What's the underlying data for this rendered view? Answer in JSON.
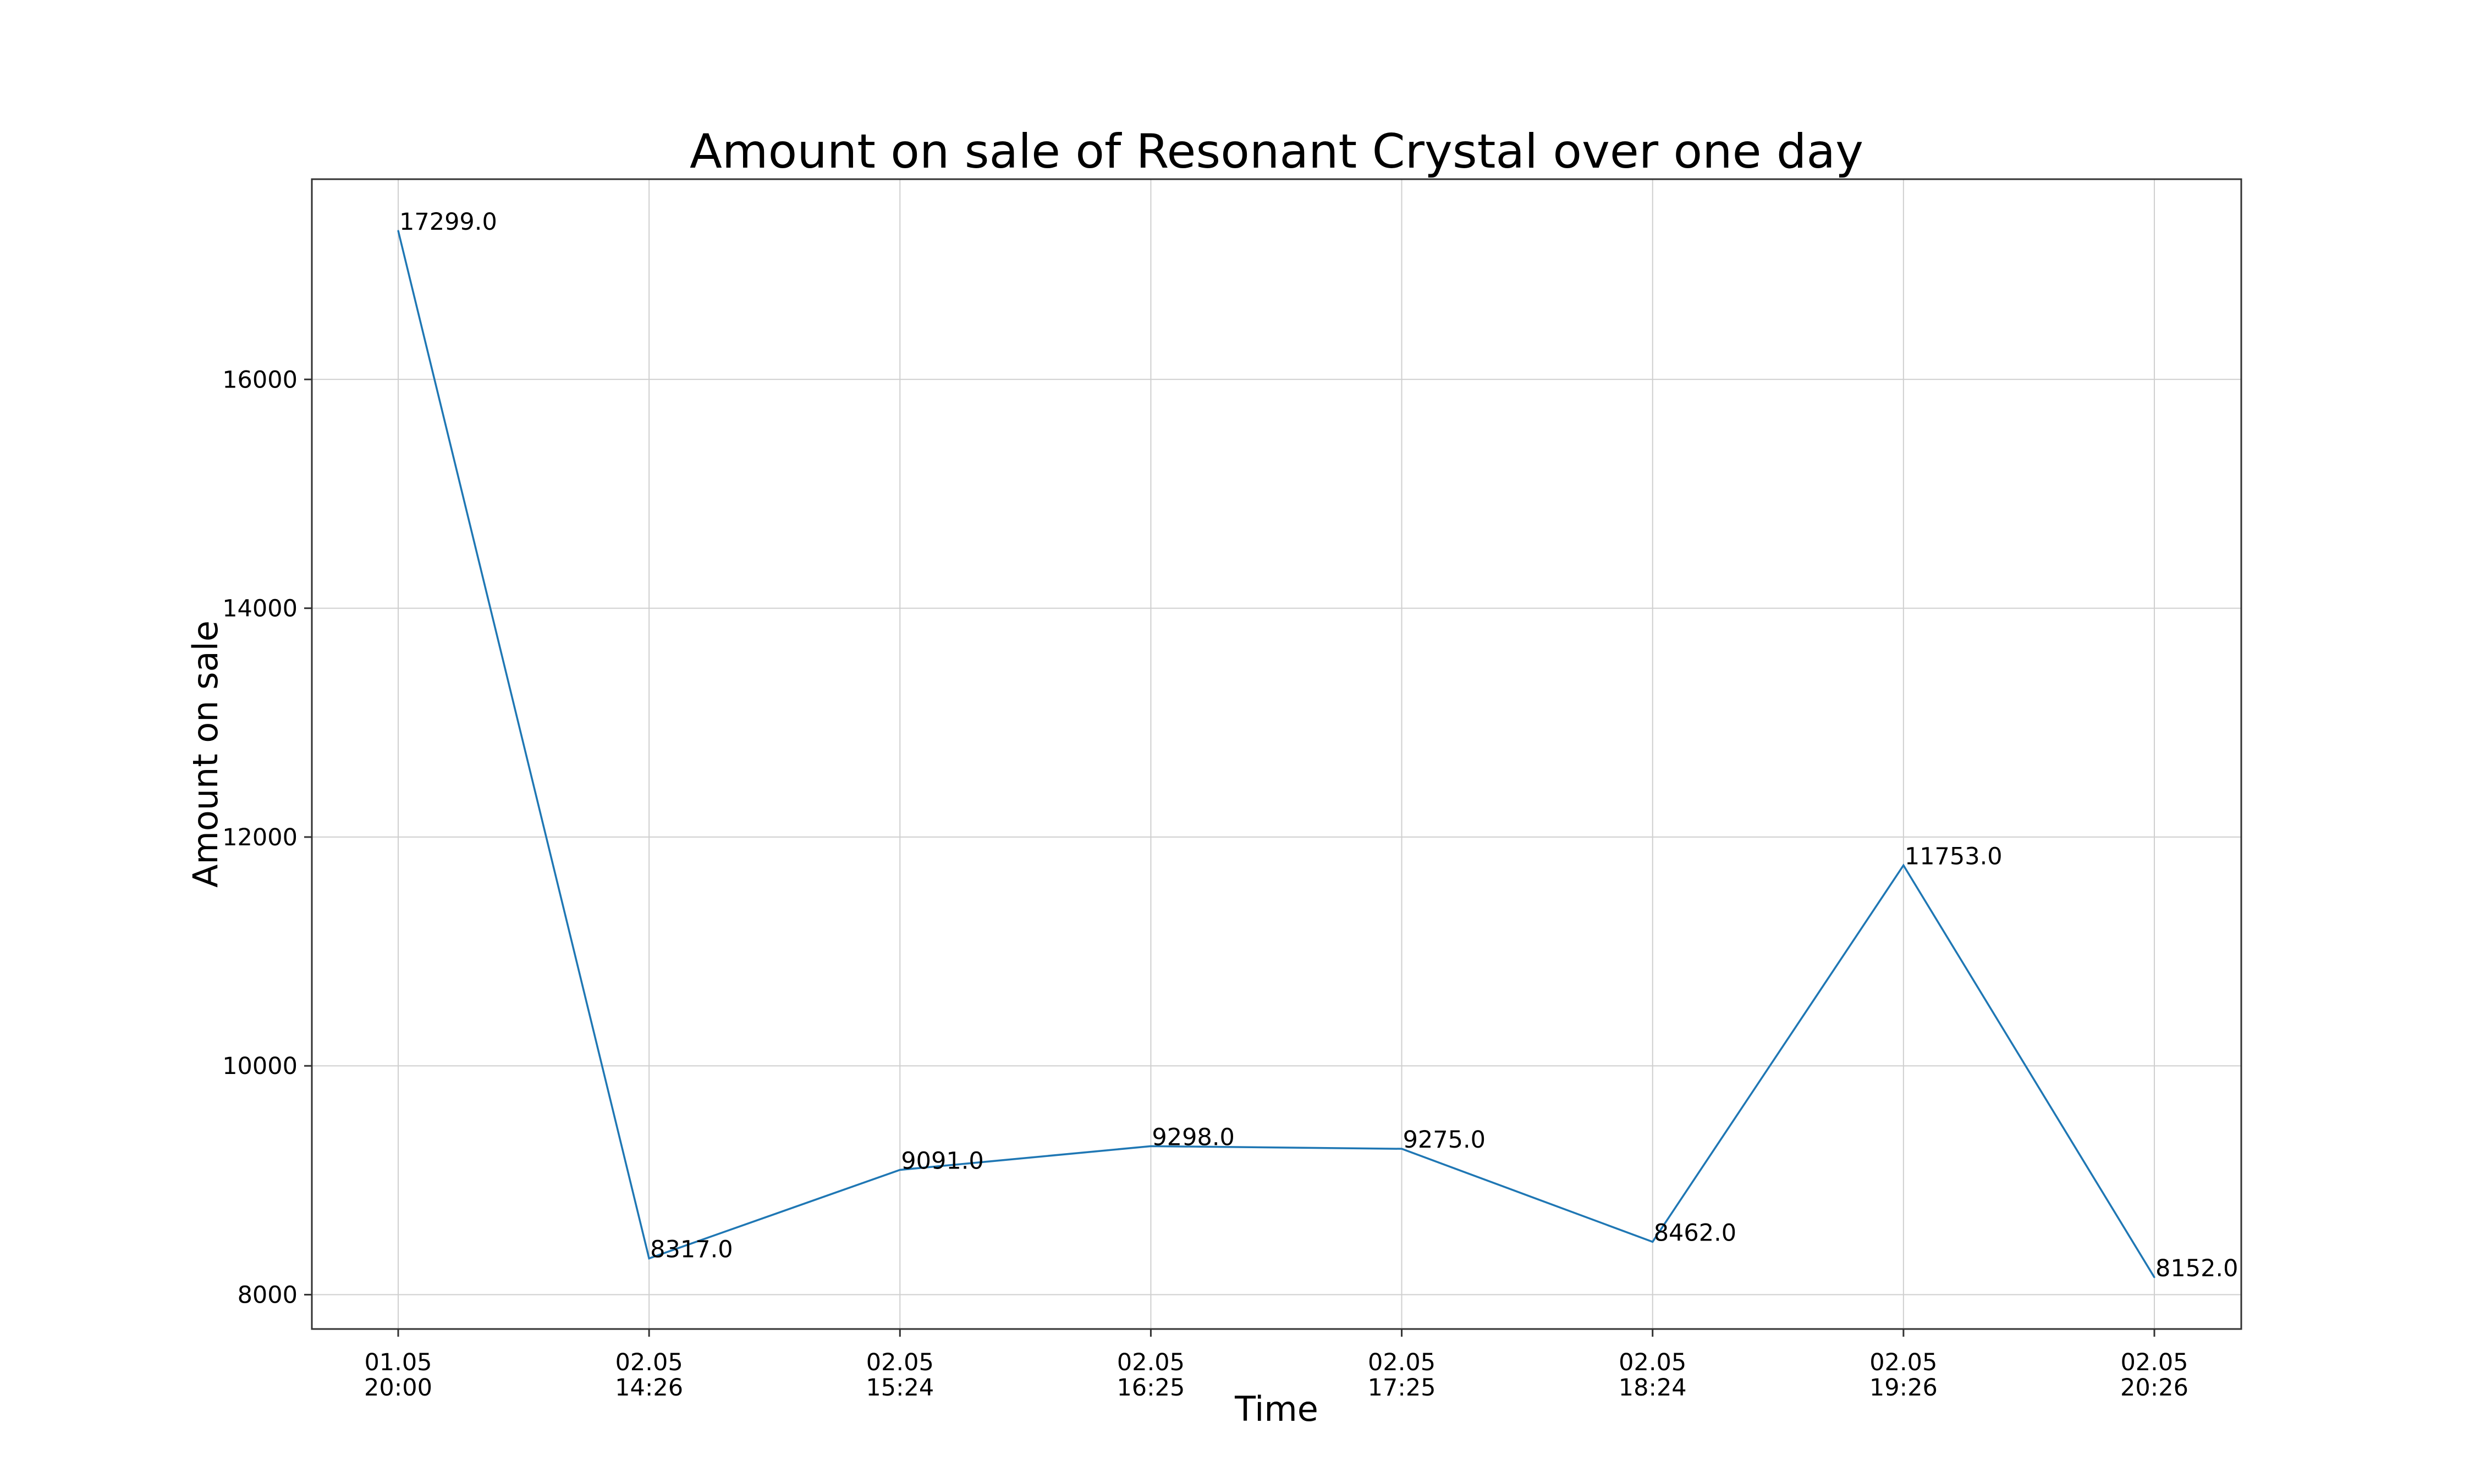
{
  "chart_data": {
    "type": "line",
    "title": "Amount on sale of Resonant Crystal over one day",
    "xlabel": "Time",
    "ylabel": "Amount on sale",
    "categories": [
      "01.05\n20:00",
      "02.05\n14:26",
      "02.05\n15:24",
      "02.05\n16:25",
      "02.05\n17:25",
      "02.05\n18:24",
      "02.05\n19:26",
      "02.05\n20:26"
    ],
    "series": [
      {
        "values": [
          17299.0,
          8317.0,
          9091.0,
          9298.0,
          9275.0,
          8462.0,
          11753.0,
          8152.0
        ],
        "color": "#1f77b4"
      }
    ],
    "data_labels": [
      "17299.0",
      "8317.0",
      "9091.0",
      "9298.0",
      "9275.0",
      "8462.0",
      "11753.0",
      "8152.0"
    ],
    "y_ticks": [
      8000,
      10000,
      12000,
      14000,
      16000
    ],
    "ylim": [
      7700,
      17750
    ],
    "grid": true,
    "legend": false
  }
}
